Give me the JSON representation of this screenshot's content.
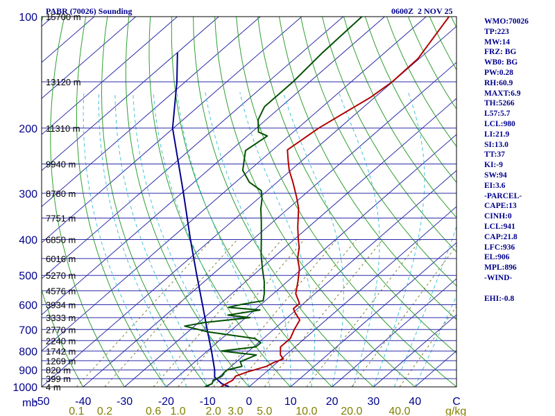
{
  "chart_data": {
    "type": "skew-t-log-p",
    "title": "PABR (70026) Sounding",
    "valid_time": "0600Z  2 NOV 25",
    "pressure_axis": {
      "unit_label": "mb",
      "ticks": [
        "100",
        "200",
        "300",
        "400",
        "500",
        "600",
        "700",
        "800",
        "900",
        "1000"
      ],
      "range_hpa": [
        100,
        1000
      ]
    },
    "temperature_axis": {
      "ticks": [
        "-50",
        "-40",
        "-30",
        "-20",
        "-10",
        "0",
        "10",
        "20",
        "30",
        "40"
      ],
      "end_label": "C",
      "range_c_at_surface": [
        -50,
        50
      ]
    },
    "mixing_ratio_axis": {
      "ticks": [
        {
          "label": "0.1",
          "w": 0.1
        },
        {
          "label": "0.2",
          "w": 0.2
        },
        {
          "label": "0.6",
          "w": 0.6
        },
        {
          "label": "1.0",
          "w": 1.0
        },
        {
          "label": "2.0",
          "w": 2.0
        },
        {
          "label": "3.0",
          "w": 3.0
        },
        {
          "label": "5.0",
          "w": 5.0
        },
        {
          "label": "10.0",
          "w": 10.0
        },
        {
          "label": "20.0",
          "w": 20.0
        },
        {
          "label": "40.0",
          "w": 40.0
        }
      ],
      "unit_label": "g/kg"
    },
    "height_labels": [
      {
        "p": 100,
        "label": "15700 m"
      },
      {
        "p": 150,
        "label": "13120 m"
      },
      {
        "p": 200,
        "label": "11310 m"
      },
      {
        "p": 250,
        "label": "9940 m"
      },
      {
        "p": 300,
        "label": "8780 m"
      },
      {
        "p": 350,
        "label": "7751 m"
      },
      {
        "p": 400,
        "label": "6850 m"
      },
      {
        "p": 450,
        "label": "6016 m"
      },
      {
        "p": 500,
        "label": "5270 m"
      },
      {
        "p": 550,
        "label": "4576 m"
      },
      {
        "p": 600,
        "label": "3934 m"
      },
      {
        "p": 650,
        "label": "3333 m"
      },
      {
        "p": 700,
        "label": "2770 m"
      },
      {
        "p": 750,
        "label": "2240 m"
      },
      {
        "p": 800,
        "label": "1742 m"
      },
      {
        "p": 850,
        "label": "1269 m"
      },
      {
        "p": 900,
        "label": "820 m"
      },
      {
        "p": 950,
        "label": "399 m"
      },
      {
        "p": 1000,
        "label": "4 m"
      }
    ],
    "temperature_profile": [
      {
        "p": 1000,
        "t": -6.8
      },
      {
        "p": 985,
        "t": -6.5
      },
      {
        "p": 960,
        "t": -5.8
      },
      {
        "p": 935,
        "t": -6.2
      },
      {
        "p": 910,
        "t": -4.4
      },
      {
        "p": 880,
        "t": -1.5
      },
      {
        "p": 860,
        "t": -0.8
      },
      {
        "p": 840,
        "t": 0.5
      },
      {
        "p": 820,
        "t": -1.3
      },
      {
        "p": 780,
        "t": -3.5
      },
      {
        "p": 740,
        "t": -3.5
      },
      {
        "p": 700,
        "t": -5.0
      },
      {
        "p": 660,
        "t": -6.3
      },
      {
        "p": 630,
        "t": -9.5
      },
      {
        "p": 615,
        "t": -11.0
      },
      {
        "p": 595,
        "t": -11.0
      },
      {
        "p": 560,
        "t": -14.6
      },
      {
        "p": 520,
        "t": -17.4
      },
      {
        "p": 480,
        "t": -20.6
      },
      {
        "p": 450,
        "t": -23.9
      },
      {
        "p": 420,
        "t": -26.6
      },
      {
        "p": 400,
        "t": -29.0
      },
      {
        "p": 370,
        "t": -32.6
      },
      {
        "p": 330,
        "t": -37.5
      },
      {
        "p": 310,
        "t": -40.7
      },
      {
        "p": 280,
        "t": -46.2
      },
      {
        "p": 260,
        "t": -50.4
      },
      {
        "p": 245,
        "t": -53.3
      },
      {
        "p": 229,
        "t": -56.5
      },
      {
        "p": 200,
        "t": -55.0
      },
      {
        "p": 165,
        "t": -51.0
      },
      {
        "p": 150,
        "t": -50.1
      },
      {
        "p": 130,
        "t": -50.3
      },
      {
        "p": 100,
        "t": -54.5
      }
    ],
    "dewpoint_profile": [
      {
        "p": 1000,
        "t": -10.7
      },
      {
        "p": 980,
        "t": -9.8
      },
      {
        "p": 960,
        "t": -10.5
      },
      {
        "p": 935,
        "t": -9.5
      },
      {
        "p": 915,
        "t": -10.0
      },
      {
        "p": 900,
        "t": -10.0
      },
      {
        "p": 880,
        "t": -7.4
      },
      {
        "p": 855,
        "t": -9.1
      },
      {
        "p": 820,
        "t": -7.1
      },
      {
        "p": 800,
        "t": -16.6
      },
      {
        "p": 780,
        "t": -9.5
      },
      {
        "p": 760,
        "t": -9.4
      },
      {
        "p": 740,
        "t": -12.0
      },
      {
        "p": 710,
        "t": -25.2
      },
      {
        "p": 685,
        "t": -32.4
      },
      {
        "p": 670,
        "t": -28.5
      },
      {
        "p": 650,
        "t": -19.0
      },
      {
        "p": 640,
        "t": -25.0
      },
      {
        "p": 620,
        "t": -18.7
      },
      {
        "p": 610,
        "t": -27.0
      },
      {
        "p": 600,
        "t": -25.0
      },
      {
        "p": 585,
        "t": -20.5
      },
      {
        "p": 560,
        "t": -22.2
      },
      {
        "p": 520,
        "t": -25.5
      },
      {
        "p": 480,
        "t": -29.5
      },
      {
        "p": 440,
        "t": -33.7
      },
      {
        "p": 400,
        "t": -37.9
      },
      {
        "p": 360,
        "t": -42.6
      },
      {
        "p": 330,
        "t": -46.6
      },
      {
        "p": 310,
        "t": -49.1
      },
      {
        "p": 295,
        "t": -51.5
      },
      {
        "p": 280,
        "t": -56.7
      },
      {
        "p": 260,
        "t": -61.6
      },
      {
        "p": 230,
        "t": -66.4
      },
      {
        "p": 210,
        "t": -65.2
      },
      {
        "p": 205,
        "t": -68.4
      },
      {
        "p": 190,
        "t": -71.9
      },
      {
        "p": 175,
        "t": -74.0
      },
      {
        "p": 150,
        "t": -74.0
      },
      {
        "p": 125,
        "t": -75.0
      },
      {
        "p": 100,
        "t": -75.5
      }
    ],
    "parcel_profile": [
      {
        "p": 1000,
        "t": -4.8
      },
      {
        "p": 980,
        "t": -7.5
      },
      {
        "p": 941,
        "t": -11.0
      },
      {
        "p": 900,
        "t": -13.0
      },
      {
        "p": 800,
        "t": -19.0
      },
      {
        "p": 700,
        "t": -26.0
      },
      {
        "p": 600,
        "t": -34.0
      },
      {
        "p": 500,
        "t": -43.5
      },
      {
        "p": 400,
        "t": -55.0
      },
      {
        "p": 300,
        "t": -69.5
      },
      {
        "p": 200,
        "t": -90.2
      },
      {
        "p": 150,
        "t": -102.0
      },
      {
        "p": 125,
        "t": -110.0
      }
    ]
  },
  "indices": [
    "WMO:70026",
    "TP:223",
    "MW:14",
    "FRZ: BG",
    "WB0: BG",
    "PW:0.28",
    "RH:60.9",
    "MAXT:6.9",
    "TH:5266",
    "L57:5.7",
    "LCL:980",
    "LI:21.9",
    "SI:13.0",
    "TT:37",
    "KI:-9",
    "SW:94",
    "EI:3.6",
    "-PARCEL-",
    "CAPE:13",
    "CINH:0",
    "LCL:941",
    "CAP:21.8",
    "LFC:936",
    "EL:906",
    "MPL:896",
    "-WIND-",
    "",
    "EHI:-0.8"
  ],
  "colors": {
    "isobar": "#2a2aa8",
    "isotherm": "#2a2aa8",
    "dry_adiabat": "#2e9e2e",
    "moist_adiabat": "#43c3d6",
    "mixing_ratio": "#7f7f30",
    "temperature": "#b00000",
    "dewpoint": "#005000",
    "parcel": "#00008b",
    "axis_text": "#00008b",
    "mr_text": "#808000"
  }
}
